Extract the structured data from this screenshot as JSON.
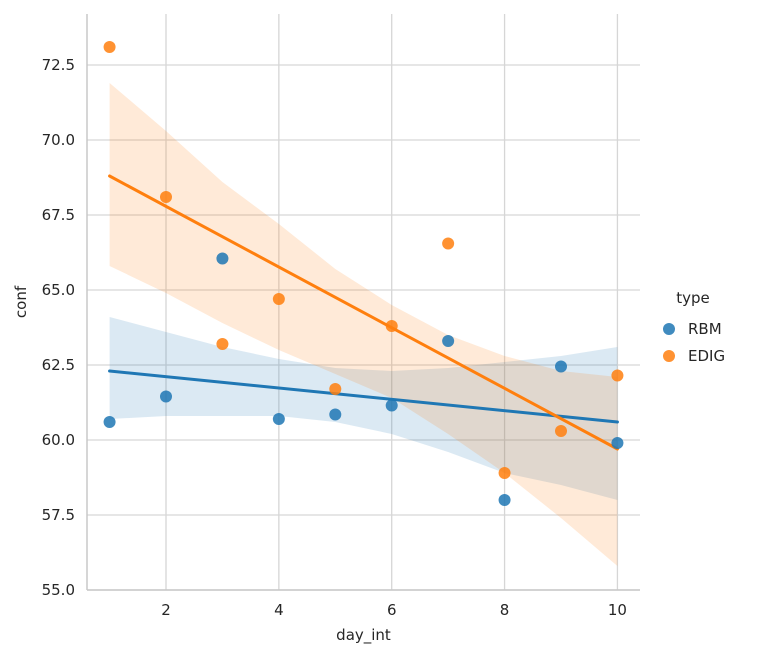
{
  "chart_data": {
    "type": "scatter",
    "title": "",
    "xlabel": "day_int",
    "ylabel": "conf",
    "xlim": [
      0.6,
      10.4
    ],
    "ylim": [
      55.0,
      74.2
    ],
    "xticks": [
      2,
      4,
      6,
      8,
      10
    ],
    "xtick_labels": [
      "2",
      "4",
      "6",
      "8",
      "10"
    ],
    "yticks": [
      55.0,
      57.5,
      60.0,
      62.5,
      65.0,
      67.5,
      70.0,
      72.5
    ],
    "ytick_labels": [
      "55.0",
      "57.5",
      "60.0",
      "62.5",
      "65.0",
      "67.5",
      "70.0",
      "72.5"
    ],
    "grid": true,
    "legend": {
      "title": "type",
      "placement": "right"
    },
    "series": [
      {
        "name": "RBM",
        "color": "#1f77b4",
        "x": [
          1,
          2,
          3,
          4,
          5,
          6,
          7,
          8,
          9,
          10
        ],
        "y": [
          60.6,
          61.45,
          66.05,
          60.7,
          60.85,
          61.15,
          63.3,
          58.0,
          62.45,
          59.9
        ],
        "fit": {
          "x": [
            1,
            10
          ],
          "y": [
            62.3,
            60.6
          ]
        },
        "ci_upper": [
          64.1,
          63.6,
          63.1,
          62.7,
          62.4,
          62.3,
          62.4,
          62.6,
          62.8,
          63.1
        ],
        "ci_lower": [
          60.7,
          60.8,
          60.8,
          60.8,
          60.6,
          60.2,
          59.6,
          58.9,
          58.5,
          58.0
        ]
      },
      {
        "name": "EDIG",
        "color": "#ff7f0e",
        "x": [
          1,
          2,
          3,
          4,
          5,
          6,
          7,
          8,
          9,
          10
        ],
        "y": [
          73.1,
          68.1,
          63.2,
          64.7,
          61.7,
          63.8,
          66.55,
          58.9,
          60.3,
          62.15
        ],
        "fit": {
          "x": [
            1,
            10
          ],
          "y": [
            68.8,
            59.7
          ]
        },
        "ci_upper": [
          71.9,
          70.3,
          68.6,
          67.2,
          65.7,
          64.5,
          63.5,
          62.8,
          62.3,
          62.1
        ],
        "ci_lower": [
          65.8,
          64.9,
          63.9,
          63.0,
          62.2,
          61.4,
          60.2,
          58.9,
          57.4,
          55.8
        ]
      }
    ]
  }
}
